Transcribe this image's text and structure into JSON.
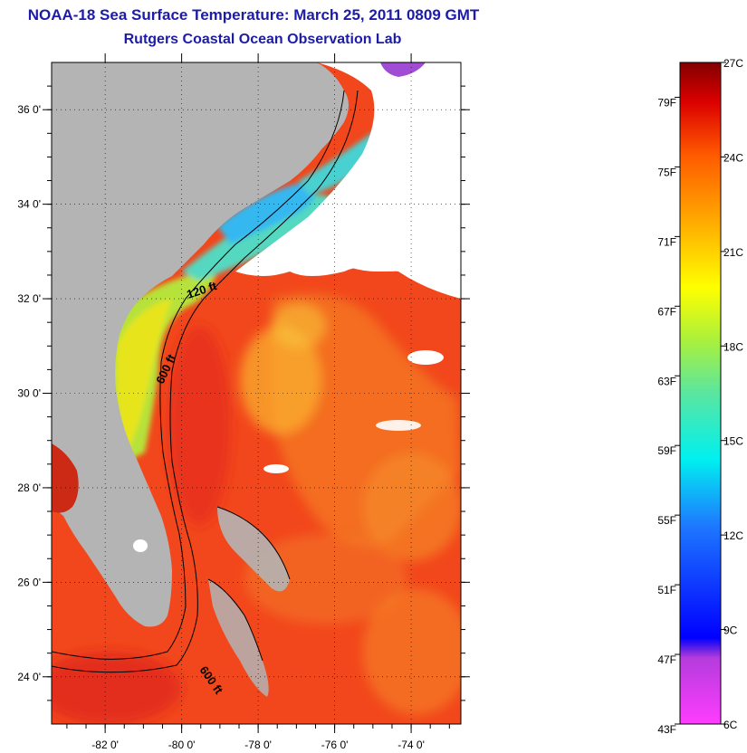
{
  "header": {
    "title": "NOAA-18 Sea Surface Temperature:  March 25, 2011 0809 GMT",
    "subtitle": "Rutgers Coastal Ocean Observation Lab"
  },
  "map": {
    "lat_ticks": [
      {
        "value": 36,
        "label": "36 0'"
      },
      {
        "value": 34,
        "label": "34 0'"
      },
      {
        "value": 32,
        "label": "32 0'"
      },
      {
        "value": 30,
        "label": "30 0'"
      },
      {
        "value": 28,
        "label": "28 0'"
      },
      {
        "value": 26,
        "label": "26 0'"
      },
      {
        "value": 24,
        "label": "24 0'"
      }
    ],
    "lon_ticks": [
      {
        "value": -82,
        "label": "-82 0'"
      },
      {
        "value": -80,
        "label": "-80 0'"
      },
      {
        "value": -78,
        "label": "-78 0'"
      },
      {
        "value": -76,
        "label": "-76 0'"
      },
      {
        "value": -74,
        "label": "-74 0'"
      }
    ],
    "depth_labels": [
      "120 ft",
      "600 ft",
      "600 ft"
    ],
    "colors": {
      "land": "#b4b4b4",
      "cloud": "#ffffff",
      "warm": "#f0391a",
      "cool": "#e8e41e"
    }
  },
  "colorbar": {
    "fahrenheit": [
      "79F",
      "75F",
      "71F",
      "67F",
      "63F",
      "59F",
      "55F",
      "51F",
      "47F",
      "43F"
    ],
    "celsius": [
      "27C",
      "24C",
      "21C",
      "18C",
      "15C",
      "12C",
      "9C",
      "6C"
    ],
    "range_f": [
      43,
      81
    ],
    "range_c": [
      6,
      27
    ]
  }
}
